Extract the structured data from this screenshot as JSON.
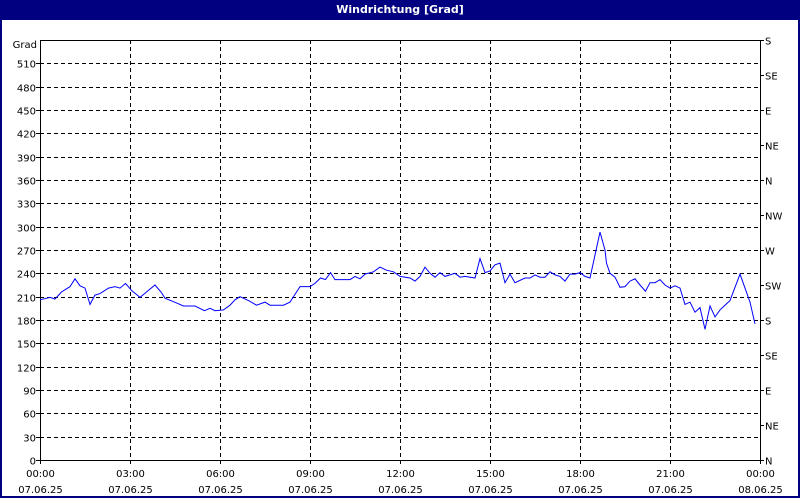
{
  "window": {
    "title": "Windrichtung [Grad]"
  },
  "chart_data": {
    "type": "line",
    "title": "Windrichtung [Grad]",
    "ylabel": "Grad",
    "ylim": [
      0,
      540
    ],
    "yticks": [
      0,
      30,
      60,
      90,
      120,
      150,
      180,
      210,
      240,
      270,
      300,
      330,
      360,
      390,
      420,
      450,
      480,
      510
    ],
    "right_axis": {
      "labels": [
        "S",
        "SE",
        "E",
        "NE",
        "N",
        "NW",
        "W",
        "SW",
        "S",
        "SE",
        "E",
        "NE",
        "N"
      ],
      "values": [
        540,
        495,
        450,
        405,
        360,
        315,
        270,
        225,
        180,
        135,
        90,
        45,
        0
      ]
    },
    "xticks": [
      {
        "time": "00:00",
        "date": "07.06.25"
      },
      {
        "time": "03:00",
        "date": "07.06.25"
      },
      {
        "time": "06:00",
        "date": "07.06.25"
      },
      {
        "time": "09:00",
        "date": "07.06.25"
      },
      {
        "time": "12:00",
        "date": "07.06.25"
      },
      {
        "time": "15:00",
        "date": "07.06.25"
      },
      {
        "time": "18:00",
        "date": "07.06.25"
      },
      {
        "time": "21:00",
        "date": "07.06.25"
      },
      {
        "time": "00:00",
        "date": "08.06.25"
      }
    ],
    "grid": true,
    "line_color": "#0000ff",
    "x": [
      "00:00",
      "00:20",
      "00:30",
      "00:43",
      "01:00",
      "01:10",
      "01:20",
      "01:30",
      "01:40",
      "01:50",
      "02:00",
      "02:17",
      "02:30",
      "02:40",
      "02:51",
      "03:03",
      "03:20",
      "03:33",
      "03:50",
      "04:02",
      "04:10",
      "04:33",
      "04:47",
      "05:10",
      "05:29",
      "05:40",
      "05:50",
      "06:07",
      "06:20",
      "06:30",
      "06:40",
      "06:57",
      "07:13",
      "07:30",
      "07:40",
      "08:07",
      "08:20",
      "08:40",
      "09:00",
      "09:10",
      "09:21",
      "09:31",
      "09:41",
      "09:50",
      "10:20",
      "10:30",
      "10:40",
      "10:50",
      "11:07",
      "11:20",
      "11:33",
      "11:47",
      "12:00",
      "12:20",
      "12:30",
      "12:40",
      "12:50",
      "13:00",
      "13:10",
      "13:20",
      "13:30",
      "13:50",
      "14:00",
      "14:10",
      "14:30",
      "14:40",
      "14:50",
      "15:00",
      "15:10",
      "15:20",
      "15:30",
      "15:40",
      "15:50",
      "16:10",
      "16:20",
      "16:30",
      "16:40",
      "16:50",
      "17:00",
      "17:10",
      "17:20",
      "17:30",
      "17:40",
      "17:50",
      "18:00",
      "18:10",
      "18:20",
      "18:40",
      "18:50",
      "18:53",
      "19:00",
      "19:10",
      "19:20",
      "19:30",
      "19:40",
      "19:50",
      "20:00",
      "20:11",
      "20:20",
      "20:30",
      "20:40",
      "20:50",
      "21:00",
      "21:10",
      "21:20",
      "21:30",
      "21:40",
      "21:50",
      "22:00",
      "22:10",
      "22:20",
      "22:30",
      "22:40",
      "22:50",
      "23:00",
      "23:20",
      "23:30",
      "23:40",
      "23:50"
    ],
    "values": [
      206,
      209,
      207,
      216,
      223,
      233,
      224,
      221,
      200,
      212,
      214,
      221,
      223,
      221,
      227,
      218,
      209,
      216,
      225,
      216,
      208,
      202,
      198,
      198,
      192,
      195,
      192,
      193,
      199,
      206,
      210,
      205,
      199,
      203,
      199,
      199,
      203,
      223,
      223,
      227,
      234,
      232,
      241,
      232,
      232,
      236,
      233,
      239,
      242,
      248,
      244,
      242,
      236,
      234,
      230,
      236,
      248,
      240,
      235,
      241,
      236,
      240,
      235,
      236,
      234,
      259,
      241,
      243,
      251,
      253,
      228,
      239,
      228,
      234,
      234,
      238,
      235,
      235,
      242,
      238,
      236,
      230,
      239,
      239,
      241,
      236,
      234,
      293,
      270,
      253,
      240,
      235,
      222,
      223,
      230,
      233,
      225,
      217,
      228,
      228,
      232,
      225,
      221,
      224,
      221,
      200,
      203,
      190,
      196,
      168,
      198,
      184,
      193,
      199,
      205,
      239,
      221,
      203,
      175
    ]
  }
}
